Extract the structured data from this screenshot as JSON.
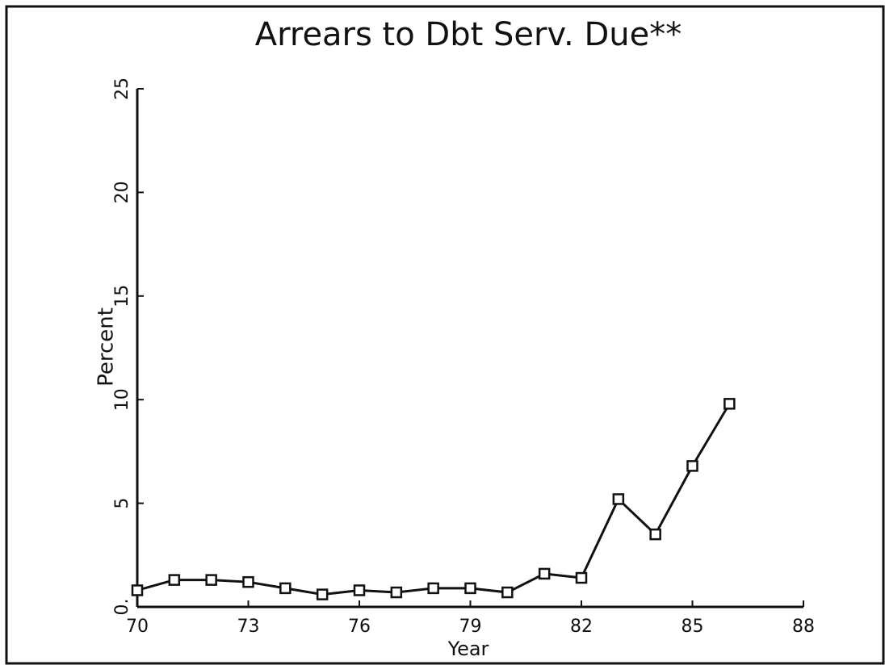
{
  "chart_data": {
    "type": "line",
    "title": "Arrears to Dbt Serv. Due**",
    "x_label": "Year",
    "y_label": "Percent",
    "x": [
      70,
      71,
      72,
      73,
      74,
      75,
      76,
      77,
      78,
      79,
      80,
      81,
      82,
      83,
      84,
      85,
      86
    ],
    "series": [
      {
        "name": "Arrears to Dbt Serv. Due",
        "color": "#111111",
        "values": [
          0.8,
          1.3,
          1.3,
          1.2,
          0.9,
          0.6,
          0.8,
          0.7,
          0.9,
          0.9,
          0.7,
          1.6,
          1.4,
          5.2,
          3.5,
          6.8,
          9.8
        ]
      }
    ],
    "xlim": [
      70,
      88
    ],
    "xticks": [
      70,
      73,
      76,
      79,
      82,
      85,
      88
    ],
    "ylim": [
      0,
      25
    ],
    "yticks": [
      {
        "value": 0,
        "label": "0."
      },
      5,
      10,
      15,
      20,
      25
    ],
    "grid": false
  }
}
